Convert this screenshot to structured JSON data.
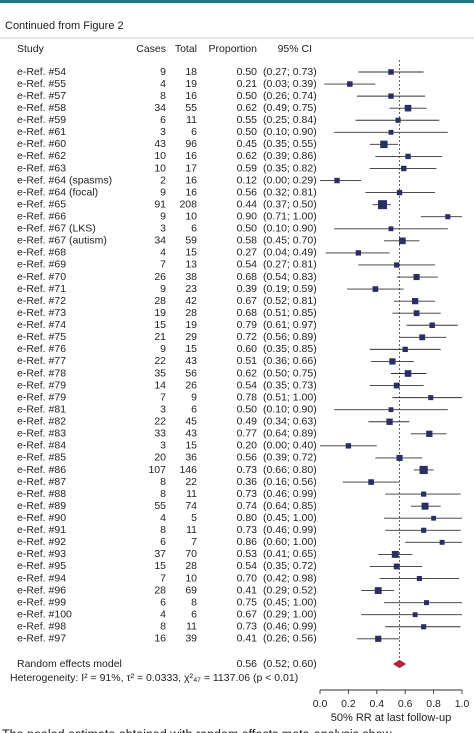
{
  "chart_data": {
    "type": "forest",
    "caption": "Continued from Figure 2",
    "columns": [
      "Study",
      "Cases",
      "Total",
      "Proportion",
      "95% CI"
    ],
    "categories": [
      "e-Ref. #54",
      "e-Ref. #55",
      "e-Ref. #57",
      "e-Ref. #58",
      "e-Ref. #59",
      "e-Ref. #61",
      "e-Ref. #60",
      "e-Ref. #62",
      "e-Ref. #63",
      "e-Ref. #64 (spasms)",
      "e-Ref. #64 (focal)",
      "e-Ref. #65",
      "e-Ref. #66",
      "e-Ref. #67 (LKS)",
      "e-Ref. #67 (autism)",
      "e-Ref. #68",
      "e-Ref. #69",
      "e-Ref. #70",
      "e-Ref. #71",
      "e-Ref. #72",
      "e-Ref. #73",
      "e-Ref. #74",
      "e-Ref. #75",
      "e-Ref. #76",
      "e-Ref. #77",
      "e-Ref. #78",
      "e-Ref. #79",
      "e-Ref. #79",
      "e-Ref. #81",
      "e-Ref. #82",
      "e-Ref. #83",
      "e-Ref. #84",
      "e-Ref. #85",
      "e-Ref. #86",
      "e-Ref. #87",
      "e-Ref. #88",
      "e-Ref. #89",
      "e-Ref. #90",
      "e-Ref. #91",
      "e-Ref. #92",
      "e-Ref. #93",
      "e-Ref. #95",
      "e-Ref. #94",
      "e-Ref. #96",
      "e-Ref. #99",
      "e-Ref. #100",
      "e-Ref. #98",
      "e-Ref. #97"
    ],
    "cases": [
      9,
      4,
      8,
      34,
      6,
      3,
      43,
      10,
      10,
      2,
      9,
      91,
      9,
      3,
      34,
      4,
      7,
      26,
      9,
      28,
      19,
      15,
      21,
      9,
      22,
      35,
      14,
      7,
      3,
      22,
      33,
      3,
      20,
      107,
      8,
      8,
      55,
      4,
      8,
      6,
      37,
      15,
      7,
      28,
      6,
      4,
      8,
      16
    ],
    "totals": [
      18,
      19,
      16,
      55,
      11,
      6,
      96,
      16,
      17,
      16,
      16,
      208,
      10,
      6,
      59,
      15,
      13,
      38,
      23,
      42,
      28,
      19,
      29,
      15,
      43,
      56,
      26,
      9,
      6,
      45,
      43,
      15,
      36,
      146,
      22,
      11,
      74,
      5,
      11,
      7,
      70,
      28,
      10,
      69,
      8,
      6,
      11,
      39
    ],
    "values": [
      0.5,
      0.21,
      0.5,
      0.62,
      0.55,
      0.5,
      0.45,
      0.62,
      0.59,
      0.12,
      0.56,
      0.44,
      0.9,
      0.5,
      0.58,
      0.27,
      0.54,
      0.68,
      0.39,
      0.67,
      0.68,
      0.79,
      0.72,
      0.6,
      0.51,
      0.62,
      0.54,
      0.78,
      0.5,
      0.49,
      0.77,
      0.2,
      0.56,
      0.73,
      0.36,
      0.73,
      0.74,
      0.8,
      0.73,
      0.86,
      0.53,
      0.54,
      0.7,
      0.41,
      0.75,
      0.67,
      0.73,
      0.41
    ],
    "value_labels": [
      "0.50",
      "0.21",
      "0.50",
      "0.62",
      "0.55",
      "0.50",
      "0.45",
      "0.62",
      "0.59",
      "0.12",
      "0.56",
      "0.44",
      "0.90",
      "0.50",
      "0.58",
      "0.27",
      "0.54",
      "0.68",
      "0.39",
      "0.67",
      "0.68",
      "0.79",
      "0.72",
      "0.60",
      "0.51",
      "0.62",
      "0.54",
      "0.78",
      "0.50",
      "0.49",
      "0.77",
      "0.20",
      "0.56",
      "0.73",
      "0.36",
      "0.73",
      "0.74",
      "0.80",
      "0.73",
      "0.86",
      "0.53",
      "0.54",
      "0.70",
      "0.41",
      "0.75",
      "0.67",
      "0.73",
      "0.41"
    ],
    "ci_lower": [
      0.27,
      0.03,
      0.26,
      0.49,
      0.25,
      0.1,
      0.35,
      0.39,
      0.35,
      0,
      0.32,
      0.37,
      0.71,
      0.1,
      0.45,
      0.04,
      0.27,
      0.54,
      0.19,
      0.52,
      0.51,
      0.61,
      0.56,
      0.35,
      0.36,
      0.5,
      0.35,
      0.51,
      0.1,
      0.34,
      0.64,
      0,
      0.39,
      0.66,
      0.16,
      0.46,
      0.64,
      0.45,
      0.46,
      0.6,
      0.41,
      0.35,
      0.42,
      0.29,
      0.45,
      0.29,
      0.46,
      0.26
    ],
    "ci_upper": [
      0.73,
      0.39,
      0.74,
      0.75,
      0.84,
      0.9,
      0.55,
      0.86,
      0.82,
      0.29,
      0.81,
      0.5,
      1,
      0.9,
      0.7,
      0.49,
      0.81,
      0.83,
      0.59,
      0.81,
      0.85,
      0.97,
      0.89,
      0.85,
      0.66,
      0.75,
      0.73,
      1,
      0.9,
      0.63,
      0.89,
      0.4,
      0.72,
      0.8,
      0.56,
      0.99,
      0.85,
      1,
      0.99,
      1,
      0.65,
      0.72,
      0.98,
      0.52,
      1,
      1,
      0.99,
      0.56
    ],
    "ci_labels": [
      "(0.27; 0.73)",
      "(0.03; 0.39)",
      "(0.26; 0.74)",
      "(0.49; 0.75)",
      "(0.25; 0.84)",
      "(0.10; 0.90)",
      "(0.35; 0.55)",
      "(0.39; 0.86)",
      "(0.35; 0.82)",
      "(0.00; 0.29)",
      "(0.32; 0.81)",
      "(0.37; 0.50)",
      "(0.71; 1.00)",
      "(0.10; 0.90)",
      "(0.45; 0.70)",
      "(0.04; 0.49)",
      "(0.27; 0.81)",
      "(0.54; 0.83)",
      "(0.19; 0.59)",
      "(0.52; 0.81)",
      "(0.51; 0.85)",
      "(0.61; 0.97)",
      "(0.56; 0.89)",
      "(0.35; 0.85)",
      "(0.36; 0.66)",
      "(0.50; 0.75)",
      "(0.35; 0.73)",
      "(0.51; 1.00)",
      "(0.10; 0.90)",
      "(0.34; 0.63)",
      "(0.64; 0.89)",
      "(0.00; 0.40)",
      "(0.39; 0.72)",
      "(0.66; 0.80)",
      "(0.16; 0.56)",
      "(0.46; 0.99)",
      "(0.64; 0.85)",
      "(0.45; 1.00)",
      "(0.46; 0.99)",
      "(0.60; 1.00)",
      "(0.41; 0.65)",
      "(0.35; 0.72)",
      "(0.42; 0.98)",
      "(0.29; 0.52)",
      "(0.45; 1.00)",
      "(0.29; 1.00)",
      "(0.46; 0.99)",
      "(0.26; 0.56)"
    ],
    "pooled": {
      "name": "Random effects model",
      "value": 0.56,
      "value_label": "0.56",
      "ci_lower": 0.52,
      "ci_upper": 0.6,
      "ci_label": "(0.52; 0.60)",
      "color": "#b3243a"
    },
    "heterogeneity": "Heterogeneity: I² = 91%, τ² = 0.0333, χ²₄₇ = 1137.06 (p < 0.01)",
    "color": "#2b2e63",
    "xlim": [
      0,
      1
    ],
    "xticks": [
      {
        "value": 0,
        "label": "0.0"
      },
      0.2,
      0.4,
      0.6,
      0.8,
      {
        "value": 1,
        "label": "1.0"
      }
    ],
    "xlabel": "50% RR at last follow-up",
    "footer_text": "The pooled estimate obtained with random effects meta-analysis show"
  }
}
